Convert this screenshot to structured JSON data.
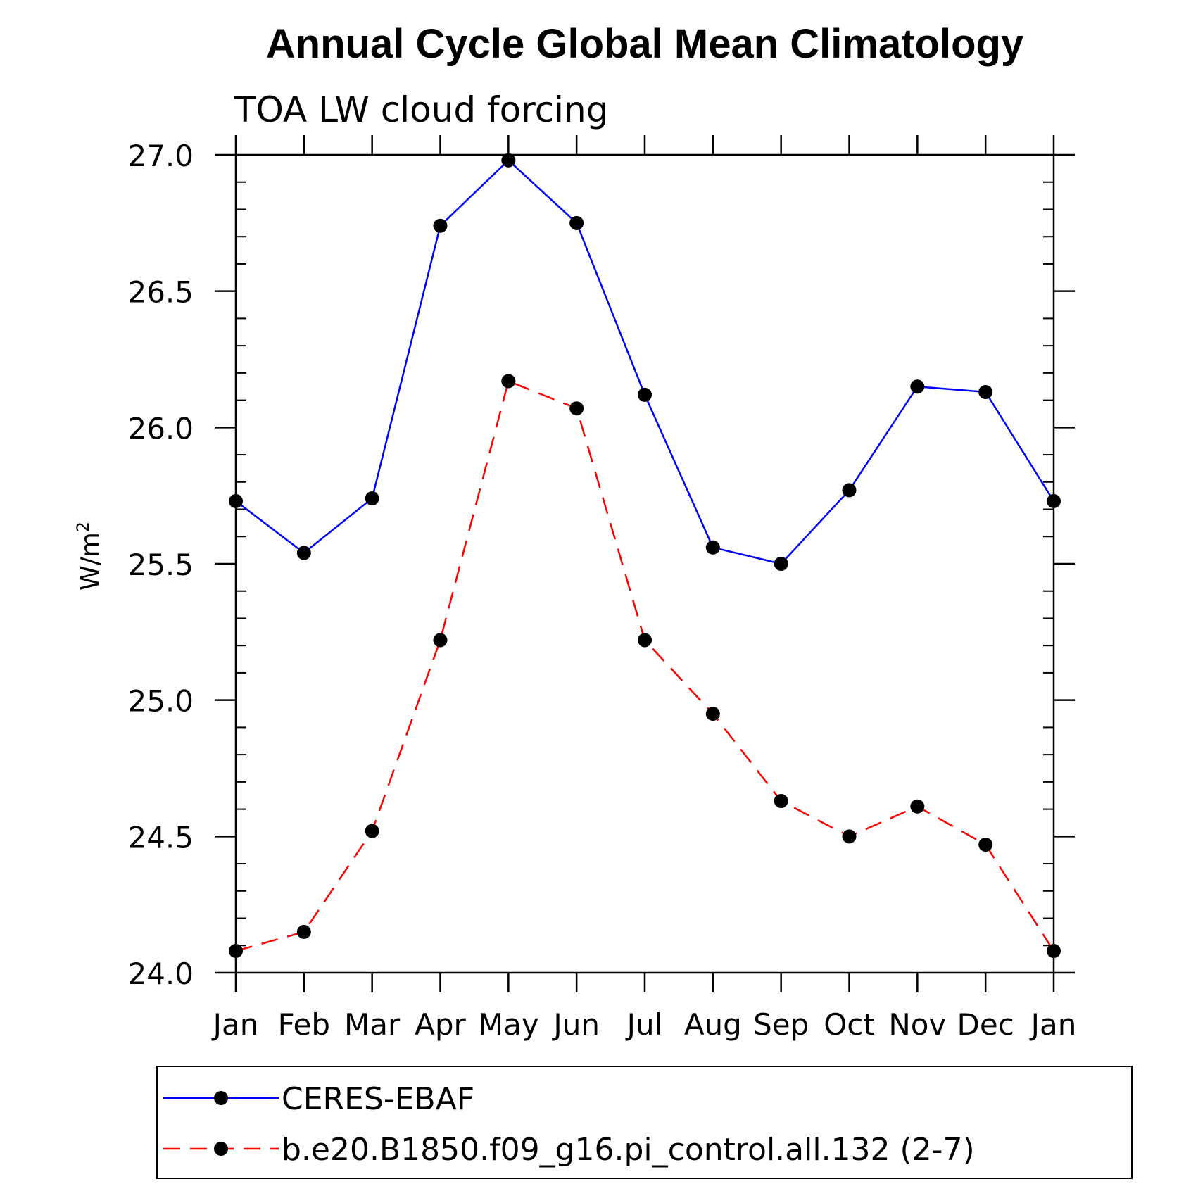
{
  "chart_data": {
    "type": "line",
    "title": "Annual Cycle Global Mean Climatology",
    "subtitle": "TOA LW cloud forcing",
    "ylabel": "W/m",
    "ylabel_superscript": "2",
    "xlabel": "",
    "categories": [
      "Jan",
      "Feb",
      "Mar",
      "Apr",
      "May",
      "Jun",
      "Jul",
      "Aug",
      "Sep",
      "Oct",
      "Nov",
      "Dec",
      "Jan"
    ],
    "ylim": [
      24.0,
      27.0
    ],
    "yticks": [
      "24.0",
      "24.5",
      "25.0",
      "25.5",
      "26.0",
      "26.5",
      "27.0"
    ],
    "grid": false,
    "legend_position": "bottom",
    "series": [
      {
        "name": "CERES-EBAF",
        "color": "#0000ff",
        "line_style": "solid",
        "marker": "filled-circle",
        "values": [
          25.73,
          25.54,
          25.74,
          26.74,
          26.98,
          26.75,
          26.12,
          25.56,
          25.5,
          25.77,
          26.15,
          26.13,
          25.73
        ]
      },
      {
        "name": "b.e20.B1850.f09_g16.pi_control.all.132 (2-7)",
        "color": "#ff0000",
        "line_style": "dashed",
        "marker": "filled-circle",
        "values": [
          24.08,
          24.15,
          24.52,
          25.22,
          26.17,
          26.07,
          25.22,
          24.95,
          24.63,
          24.5,
          24.61,
          24.47,
          24.08
        ]
      }
    ]
  }
}
